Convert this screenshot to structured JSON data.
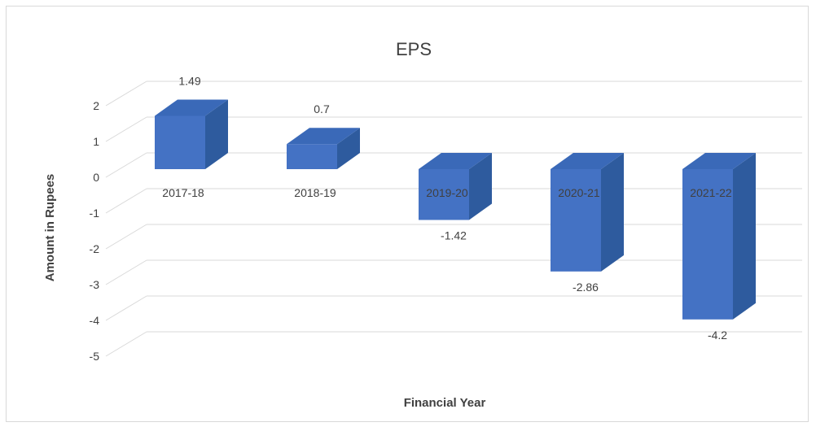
{
  "chart_data": {
    "type": "bar",
    "title": "EPS",
    "xlabel": "Financial Year",
    "ylabel": "Amount in Rupees",
    "categories": [
      "2017-18",
      "2018-19",
      "2019-20",
      "2020-21",
      "2021-22"
    ],
    "values": [
      1.49,
      0.7,
      -1.42,
      -2.86,
      -4.2
    ],
    "data_labels": [
      "1.49",
      "0.7",
      "-1.42",
      "-2.86",
      "-4.2"
    ],
    "ylim": [
      -5,
      2
    ],
    "y_ticks": [
      2,
      1,
      0,
      -1,
      -2,
      -3,
      -4,
      -5
    ],
    "grid": true,
    "legend": "none",
    "bar_color": "#4472C4",
    "bar_side_color": "#2E5B9E",
    "bar_top_color": "#3A69B8",
    "gridline_color": "#d9d9d9",
    "text_color": "#404040"
  }
}
